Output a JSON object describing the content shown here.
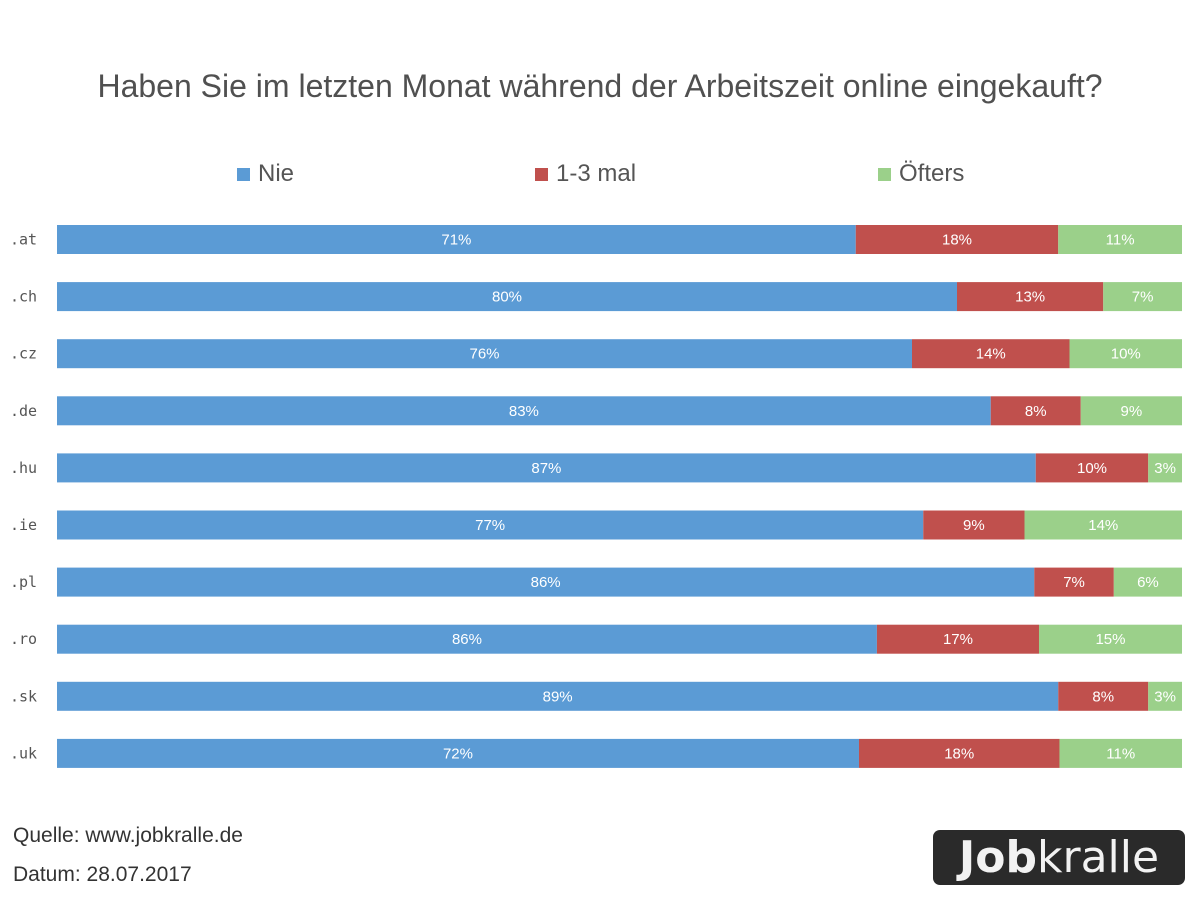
{
  "chart_data": {
    "type": "bar",
    "orientation": "horizontal",
    "stacked": true,
    "title": "Haben Sie im letzten Monat während der Arbeitszeit online eingekauft?",
    "categories": [
      ".at",
      ".ch",
      ".cz",
      ".de",
      ".hu",
      ".ie",
      ".pl",
      ".ro",
      ".sk",
      ".uk"
    ],
    "series": [
      {
        "name": "Nie",
        "color": "#5b9bd5",
        "values": [
          71,
          80,
          76,
          83,
          87,
          77,
          86,
          86,
          89,
          72
        ]
      },
      {
        "name": "1-3 mal",
        "color": "#c0504d",
        "values": [
          18,
          13,
          14,
          8,
          10,
          9,
          7,
          17,
          8,
          18
        ]
      },
      {
        "name": "Öfters",
        "color": "#9bd08a",
        "values": [
          11,
          7,
          10,
          9,
          3,
          14,
          6,
          15,
          3,
          11
        ]
      }
    ],
    "value_suffix": "%",
    "legend_position": "top",
    "grid": false
  },
  "footer": {
    "source": "Quelle: www.jobkralle.de",
    "date": "Datum: 28.07.2017"
  },
  "logo": {
    "bold": "Job",
    "light": "kralle"
  }
}
